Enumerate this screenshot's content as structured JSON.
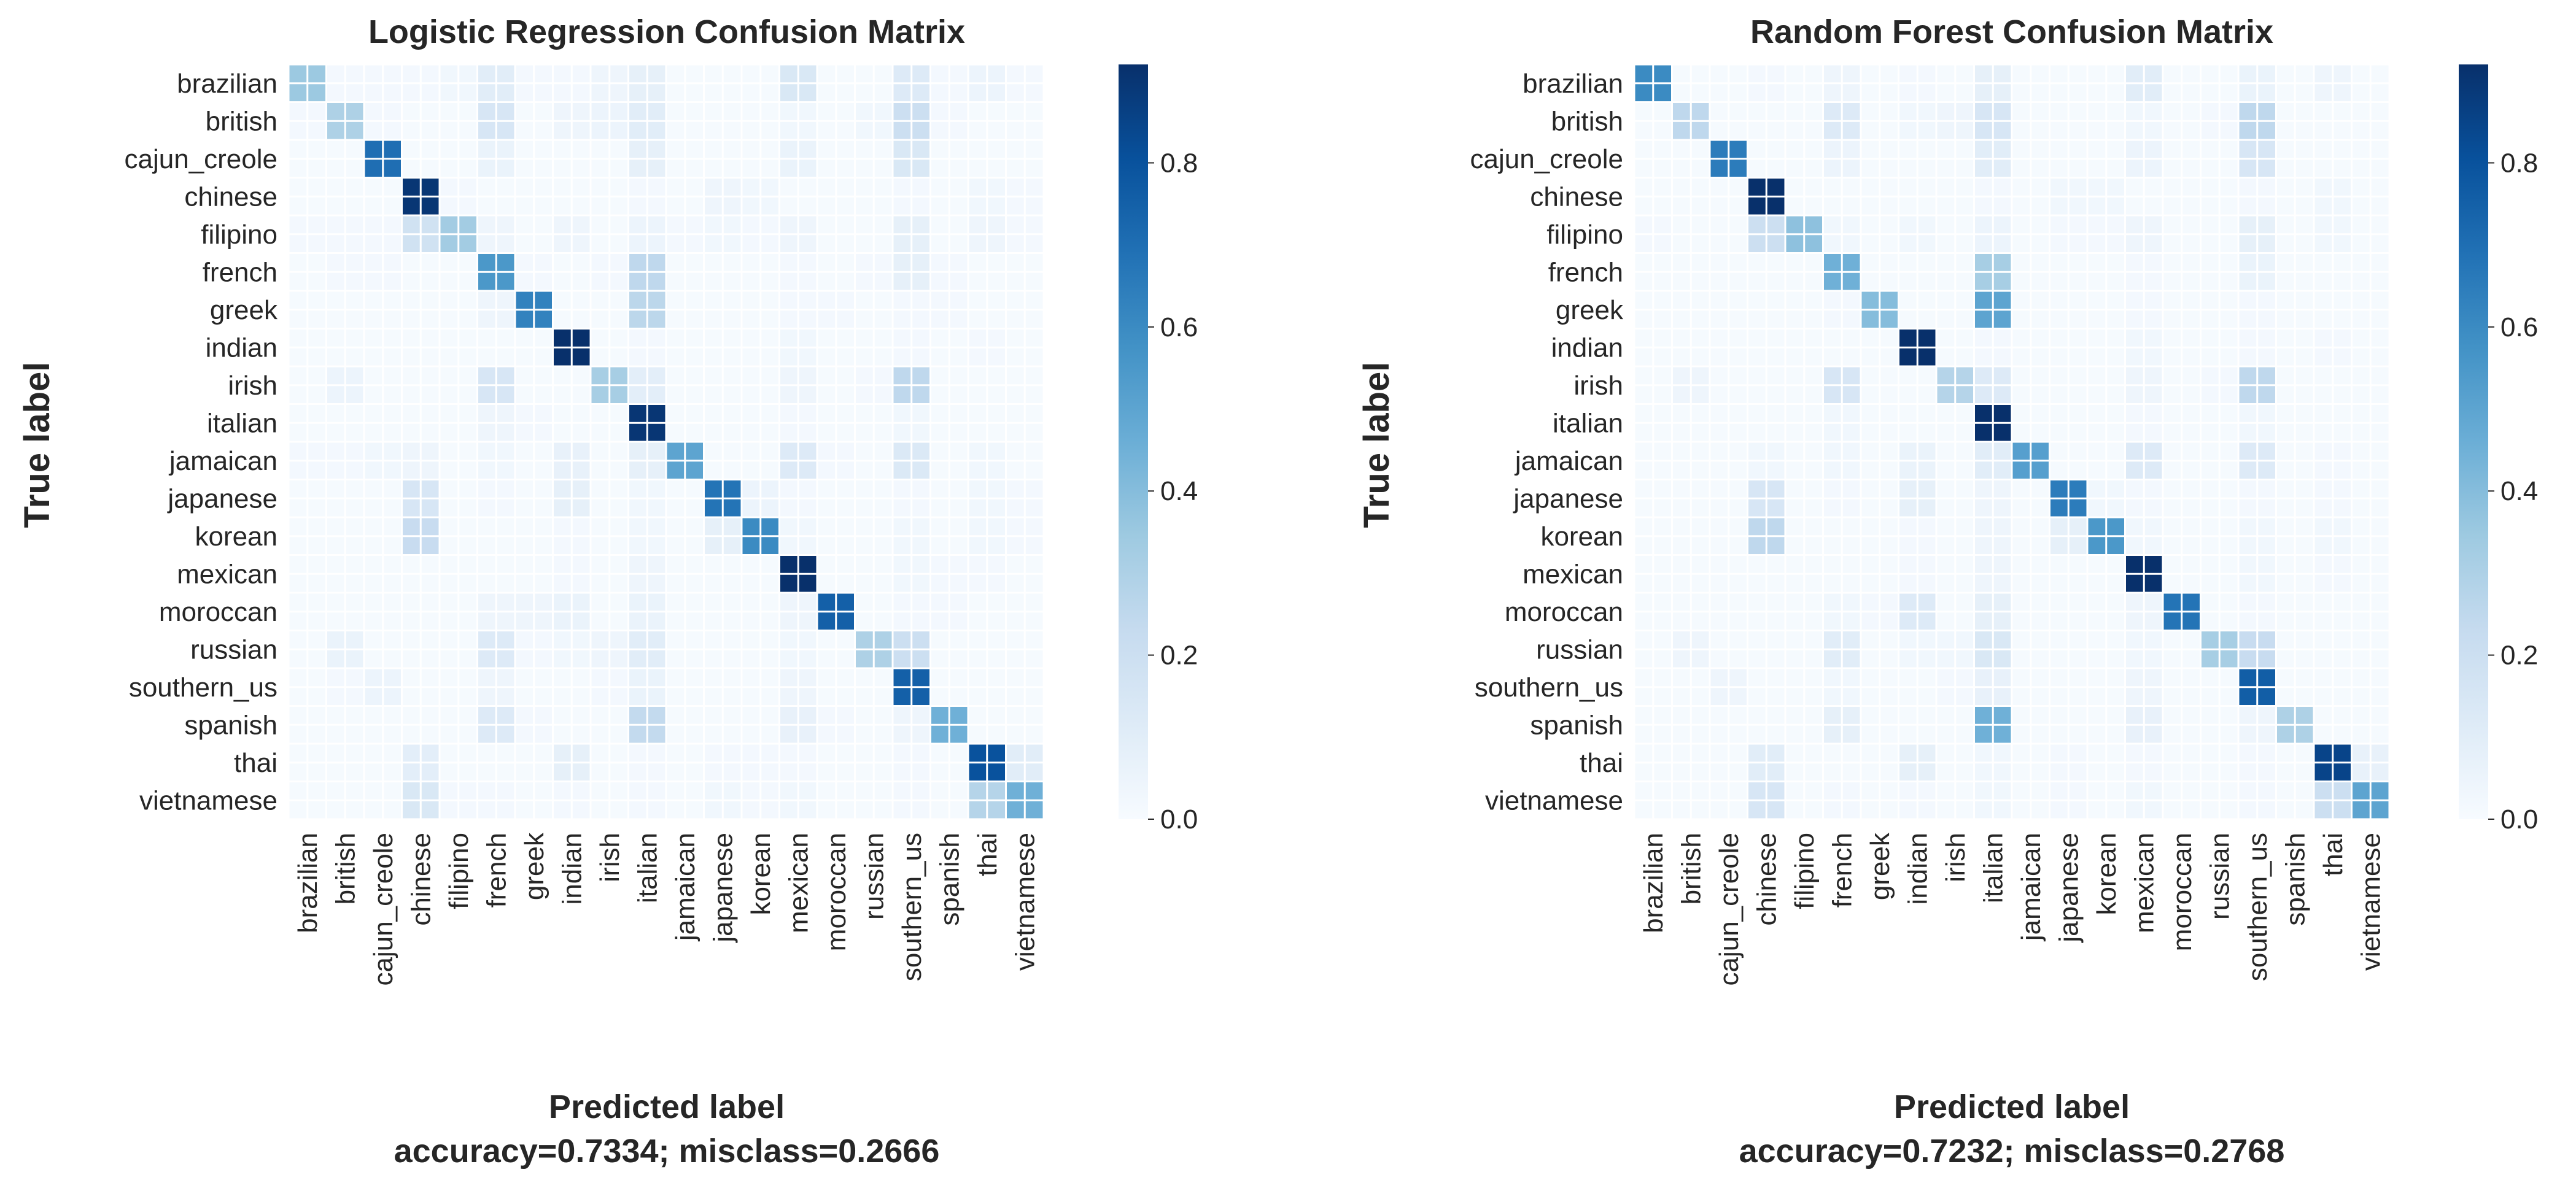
{
  "chart_data": [
    {
      "type": "heatmap",
      "title": "Logistic Regression Confusion Matrix",
      "xlabel": "Predicted label",
      "xlabel_sub": "accuracy=0.7334; misclass=0.2666",
      "ylabel": "True label",
      "categories": [
        "brazilian",
        "british",
        "cajun_creole",
        "chinese",
        "filipino",
        "french",
        "greek",
        "indian",
        "irish",
        "italian",
        "jamaican",
        "japanese",
        "korean",
        "mexican",
        "moroccan",
        "russian",
        "southern_us",
        "spanish",
        "thai",
        "vietnamese"
      ],
      "colorbar": {
        "min": 0.0,
        "max": 0.92,
        "ticks": [
          "0.0",
          "0.2",
          "0.4",
          "0.6",
          "0.8"
        ]
      },
      "colormap": "Blues",
      "matrix": [
        [
          0.35,
          0.02,
          0.02,
          0.02,
          0.03,
          0.1,
          0.02,
          0.02,
          0.04,
          0.08,
          0.01,
          0.01,
          0.01,
          0.14,
          0.01,
          0.01,
          0.12,
          0.02,
          0.05,
          0.02
        ],
        [
          0.02,
          0.3,
          0.02,
          0.01,
          0.01,
          0.15,
          0.01,
          0.04,
          0.05,
          0.1,
          0.01,
          0.01,
          0.01,
          0.03,
          0.01,
          0.03,
          0.2,
          0.02,
          0.01,
          0.01
        ],
        [
          0.01,
          0.01,
          0.7,
          0.01,
          0.01,
          0.06,
          0.01,
          0.01,
          0.01,
          0.08,
          0.01,
          0.01,
          0.01,
          0.06,
          0.01,
          0.01,
          0.14,
          0.01,
          0.01,
          0.01
        ],
        [
          0.01,
          0.01,
          0.01,
          0.9,
          0.02,
          0.01,
          0.01,
          0.01,
          0.01,
          0.02,
          0.01,
          0.04,
          0.03,
          0.01,
          0.01,
          0.01,
          0.02,
          0.01,
          0.03,
          0.02
        ],
        [
          0.02,
          0.02,
          0.02,
          0.18,
          0.33,
          0.04,
          0.01,
          0.04,
          0.01,
          0.05,
          0.02,
          0.03,
          0.02,
          0.04,
          0.01,
          0.01,
          0.08,
          0.01,
          0.04,
          0.02
        ],
        [
          0.01,
          0.02,
          0.02,
          0.01,
          0.01,
          0.55,
          0.02,
          0.01,
          0.02,
          0.25,
          0.01,
          0.01,
          0.01,
          0.02,
          0.01,
          0.02,
          0.08,
          0.02,
          0.01,
          0.01
        ],
        [
          0.01,
          0.01,
          0.01,
          0.01,
          0.01,
          0.04,
          0.63,
          0.01,
          0.01,
          0.26,
          0.01,
          0.01,
          0.01,
          0.02,
          0.02,
          0.01,
          0.02,
          0.02,
          0.01,
          0.01
        ],
        [
          0.01,
          0.01,
          0.01,
          0.01,
          0.01,
          0.01,
          0.01,
          0.92,
          0.01,
          0.02,
          0.01,
          0.01,
          0.01,
          0.03,
          0.01,
          0.01,
          0.02,
          0.01,
          0.02,
          0.01
        ],
        [
          0.01,
          0.05,
          0.01,
          0.01,
          0.01,
          0.15,
          0.01,
          0.01,
          0.32,
          0.09,
          0.01,
          0.01,
          0.01,
          0.04,
          0.01,
          0.02,
          0.25,
          0.01,
          0.01,
          0.01
        ],
        [
          0.01,
          0.01,
          0.01,
          0.01,
          0.01,
          0.04,
          0.02,
          0.01,
          0.01,
          0.9,
          0.01,
          0.01,
          0.01,
          0.02,
          0.01,
          0.01,
          0.03,
          0.01,
          0.01,
          0.01
        ],
        [
          0.02,
          0.02,
          0.03,
          0.04,
          0.01,
          0.03,
          0.01,
          0.07,
          0.01,
          0.08,
          0.5,
          0.01,
          0.01,
          0.12,
          0.02,
          0.01,
          0.13,
          0.01,
          0.03,
          0.01
        ],
        [
          0.01,
          0.01,
          0.01,
          0.15,
          0.01,
          0.02,
          0.01,
          0.08,
          0.01,
          0.03,
          0.01,
          0.68,
          0.05,
          0.02,
          0.01,
          0.01,
          0.02,
          0.01,
          0.03,
          0.02
        ],
        [
          0.01,
          0.01,
          0.01,
          0.22,
          0.01,
          0.01,
          0.01,
          0.02,
          0.01,
          0.03,
          0.01,
          0.08,
          0.6,
          0.03,
          0.01,
          0.01,
          0.03,
          0.01,
          0.03,
          0.02
        ],
        [
          0.01,
          0.01,
          0.01,
          0.01,
          0.01,
          0.01,
          0.01,
          0.02,
          0.01,
          0.04,
          0.01,
          0.01,
          0.01,
          0.92,
          0.01,
          0.01,
          0.03,
          0.02,
          0.02,
          0.01
        ],
        [
          0.01,
          0.01,
          0.01,
          0.01,
          0.01,
          0.04,
          0.04,
          0.06,
          0.01,
          0.06,
          0.01,
          0.01,
          0.01,
          0.04,
          0.75,
          0.01,
          0.02,
          0.02,
          0.01,
          0.01
        ],
        [
          0.01,
          0.06,
          0.01,
          0.01,
          0.01,
          0.12,
          0.02,
          0.03,
          0.04,
          0.1,
          0.01,
          0.01,
          0.01,
          0.03,
          0.01,
          0.3,
          0.2,
          0.01,
          0.01,
          0.01
        ],
        [
          0.01,
          0.02,
          0.05,
          0.01,
          0.01,
          0.04,
          0.01,
          0.01,
          0.02,
          0.06,
          0.01,
          0.01,
          0.01,
          0.04,
          0.01,
          0.01,
          0.75,
          0.01,
          0.01,
          0.01
        ],
        [
          0.01,
          0.01,
          0.01,
          0.01,
          0.01,
          0.12,
          0.02,
          0.01,
          0.01,
          0.24,
          0.01,
          0.01,
          0.01,
          0.07,
          0.02,
          0.01,
          0.04,
          0.45,
          0.01,
          0.01
        ],
        [
          0.01,
          0.01,
          0.01,
          0.09,
          0.01,
          0.01,
          0.01,
          0.08,
          0.01,
          0.02,
          0.01,
          0.02,
          0.02,
          0.02,
          0.01,
          0.01,
          0.02,
          0.01,
          0.8,
          0.1
        ],
        [
          0.01,
          0.01,
          0.01,
          0.14,
          0.02,
          0.02,
          0.01,
          0.02,
          0.01,
          0.02,
          0.01,
          0.03,
          0.02,
          0.03,
          0.01,
          0.01,
          0.02,
          0.01,
          0.28,
          0.45
        ]
      ]
    },
    {
      "type": "heatmap",
      "title": "Random Forest Confusion Matrix",
      "xlabel": "Predicted label",
      "xlabel_sub": "accuracy=0.7232; misclass=0.2768",
      "ylabel": "True label",
      "categories": [
        "brazilian",
        "british",
        "cajun_creole",
        "chinese",
        "filipino",
        "french",
        "greek",
        "indian",
        "irish",
        "italian",
        "jamaican",
        "japanese",
        "korean",
        "mexican",
        "moroccan",
        "russian",
        "southern_us",
        "spanish",
        "thai",
        "vietnamese"
      ],
      "colorbar": {
        "min": 0.0,
        "max": 0.92,
        "ticks": [
          "0.0",
          "0.2",
          "0.4",
          "0.6",
          "0.8"
        ]
      },
      "colormap": "Blues",
      "matrix": [
        [
          0.6,
          0.01,
          0.01,
          0.02,
          0.01,
          0.04,
          0.01,
          0.02,
          0.01,
          0.08,
          0.01,
          0.01,
          0.01,
          0.1,
          0.01,
          0.01,
          0.06,
          0.01,
          0.04,
          0.01
        ],
        [
          0.01,
          0.25,
          0.01,
          0.01,
          0.01,
          0.12,
          0.01,
          0.03,
          0.04,
          0.15,
          0.01,
          0.01,
          0.01,
          0.03,
          0.01,
          0.02,
          0.25,
          0.01,
          0.01,
          0.01
        ],
        [
          0.01,
          0.01,
          0.65,
          0.01,
          0.01,
          0.05,
          0.01,
          0.01,
          0.01,
          0.1,
          0.01,
          0.01,
          0.01,
          0.05,
          0.01,
          0.01,
          0.15,
          0.01,
          0.01,
          0.01
        ],
        [
          0.01,
          0.01,
          0.01,
          0.92,
          0.01,
          0.01,
          0.01,
          0.01,
          0.01,
          0.02,
          0.01,
          0.03,
          0.03,
          0.01,
          0.01,
          0.01,
          0.02,
          0.01,
          0.03,
          0.01
        ],
        [
          0.02,
          0.01,
          0.01,
          0.2,
          0.38,
          0.03,
          0.01,
          0.03,
          0.01,
          0.05,
          0.01,
          0.02,
          0.02,
          0.04,
          0.01,
          0.01,
          0.08,
          0.01,
          0.03,
          0.01
        ],
        [
          0.01,
          0.01,
          0.01,
          0.01,
          0.01,
          0.45,
          0.01,
          0.01,
          0.01,
          0.32,
          0.01,
          0.01,
          0.01,
          0.02,
          0.01,
          0.01,
          0.06,
          0.01,
          0.01,
          0.01
        ],
        [
          0.01,
          0.01,
          0.01,
          0.01,
          0.01,
          0.02,
          0.4,
          0.01,
          0.01,
          0.5,
          0.01,
          0.01,
          0.01,
          0.02,
          0.01,
          0.01,
          0.02,
          0.01,
          0.01,
          0.01
        ],
        [
          0.01,
          0.01,
          0.01,
          0.01,
          0.01,
          0.01,
          0.01,
          0.92,
          0.01,
          0.02,
          0.01,
          0.01,
          0.01,
          0.03,
          0.01,
          0.01,
          0.02,
          0.01,
          0.02,
          0.01
        ],
        [
          0.01,
          0.04,
          0.01,
          0.01,
          0.01,
          0.15,
          0.01,
          0.01,
          0.28,
          0.12,
          0.01,
          0.01,
          0.01,
          0.04,
          0.01,
          0.02,
          0.25,
          0.01,
          0.01,
          0.01
        ],
        [
          0.01,
          0.01,
          0.01,
          0.01,
          0.01,
          0.03,
          0.01,
          0.01,
          0.01,
          0.92,
          0.01,
          0.01,
          0.01,
          0.02,
          0.01,
          0.01,
          0.03,
          0.01,
          0.01,
          0.01
        ],
        [
          0.01,
          0.01,
          0.01,
          0.03,
          0.01,
          0.03,
          0.01,
          0.06,
          0.01,
          0.1,
          0.52,
          0.01,
          0.01,
          0.12,
          0.01,
          0.01,
          0.12,
          0.01,
          0.02,
          0.01
        ],
        [
          0.01,
          0.01,
          0.01,
          0.15,
          0.01,
          0.02,
          0.01,
          0.08,
          0.01,
          0.04,
          0.01,
          0.65,
          0.03,
          0.02,
          0.01,
          0.01,
          0.02,
          0.01,
          0.02,
          0.01
        ],
        [
          0.01,
          0.01,
          0.01,
          0.25,
          0.01,
          0.01,
          0.01,
          0.02,
          0.01,
          0.04,
          0.01,
          0.08,
          0.55,
          0.03,
          0.01,
          0.01,
          0.03,
          0.01,
          0.03,
          0.01
        ],
        [
          0.01,
          0.01,
          0.01,
          0.01,
          0.01,
          0.01,
          0.01,
          0.02,
          0.01,
          0.04,
          0.01,
          0.01,
          0.01,
          0.92,
          0.01,
          0.01,
          0.03,
          0.01,
          0.02,
          0.01
        ],
        [
          0.01,
          0.01,
          0.01,
          0.01,
          0.01,
          0.03,
          0.02,
          0.12,
          0.01,
          0.08,
          0.01,
          0.01,
          0.01,
          0.04,
          0.68,
          0.01,
          0.02,
          0.01,
          0.01,
          0.01
        ],
        [
          0.01,
          0.04,
          0.01,
          0.01,
          0.01,
          0.1,
          0.01,
          0.03,
          0.03,
          0.14,
          0.01,
          0.01,
          0.01,
          0.03,
          0.01,
          0.32,
          0.22,
          0.01,
          0.01,
          0.01
        ],
        [
          0.01,
          0.01,
          0.04,
          0.01,
          0.01,
          0.03,
          0.01,
          0.01,
          0.02,
          0.07,
          0.01,
          0.01,
          0.01,
          0.04,
          0.01,
          0.01,
          0.76,
          0.01,
          0.01,
          0.01
        ],
        [
          0.01,
          0.01,
          0.01,
          0.01,
          0.01,
          0.08,
          0.01,
          0.01,
          0.01,
          0.45,
          0.01,
          0.01,
          0.01,
          0.07,
          0.01,
          0.01,
          0.04,
          0.3,
          0.01,
          0.01
        ],
        [
          0.01,
          0.01,
          0.01,
          0.1,
          0.01,
          0.01,
          0.01,
          0.08,
          0.01,
          0.03,
          0.01,
          0.02,
          0.01,
          0.02,
          0.01,
          0.01,
          0.02,
          0.01,
          0.85,
          0.07
        ],
        [
          0.01,
          0.01,
          0.01,
          0.15,
          0.01,
          0.02,
          0.01,
          0.02,
          0.01,
          0.03,
          0.01,
          0.02,
          0.01,
          0.03,
          0.01,
          0.01,
          0.02,
          0.01,
          0.2,
          0.5
        ]
      ]
    }
  ]
}
